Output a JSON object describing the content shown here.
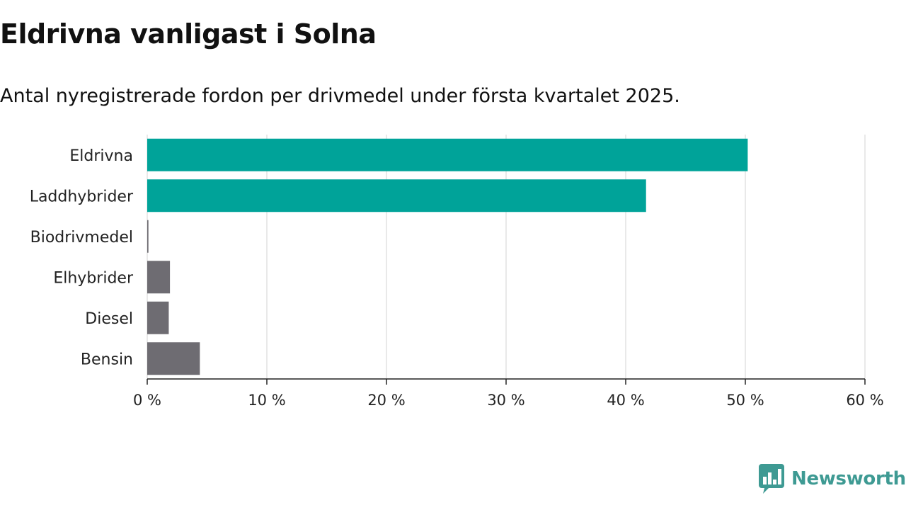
{
  "chart_data": {
    "type": "bar",
    "orientation": "horizontal",
    "title": "Eldrivna vanligast i Solna",
    "subtitle": "Antal nyregistrerade fordon per drivmedel under första kvartalet 2025.",
    "categories": [
      "Eldrivna",
      "Laddhybrider",
      "Biodrivmedel",
      "Elhybrider",
      "Diesel",
      "Bensin"
    ],
    "values": [
      50.2,
      41.7,
      0.1,
      1.9,
      1.8,
      4.4
    ],
    "colors": [
      "#00a399",
      "#00a399",
      "#6e6c72",
      "#6e6c72",
      "#6e6c72",
      "#6e6c72"
    ],
    "xlim": [
      0,
      60
    ],
    "xticks": [
      0,
      10,
      20,
      30,
      40,
      50,
      60
    ],
    "tick_format_suffix": " %",
    "grid": true
  },
  "logo": {
    "text": "Newsworthy",
    "icon": "newsworthy-logo-icon",
    "color": "#3e9a93"
  }
}
